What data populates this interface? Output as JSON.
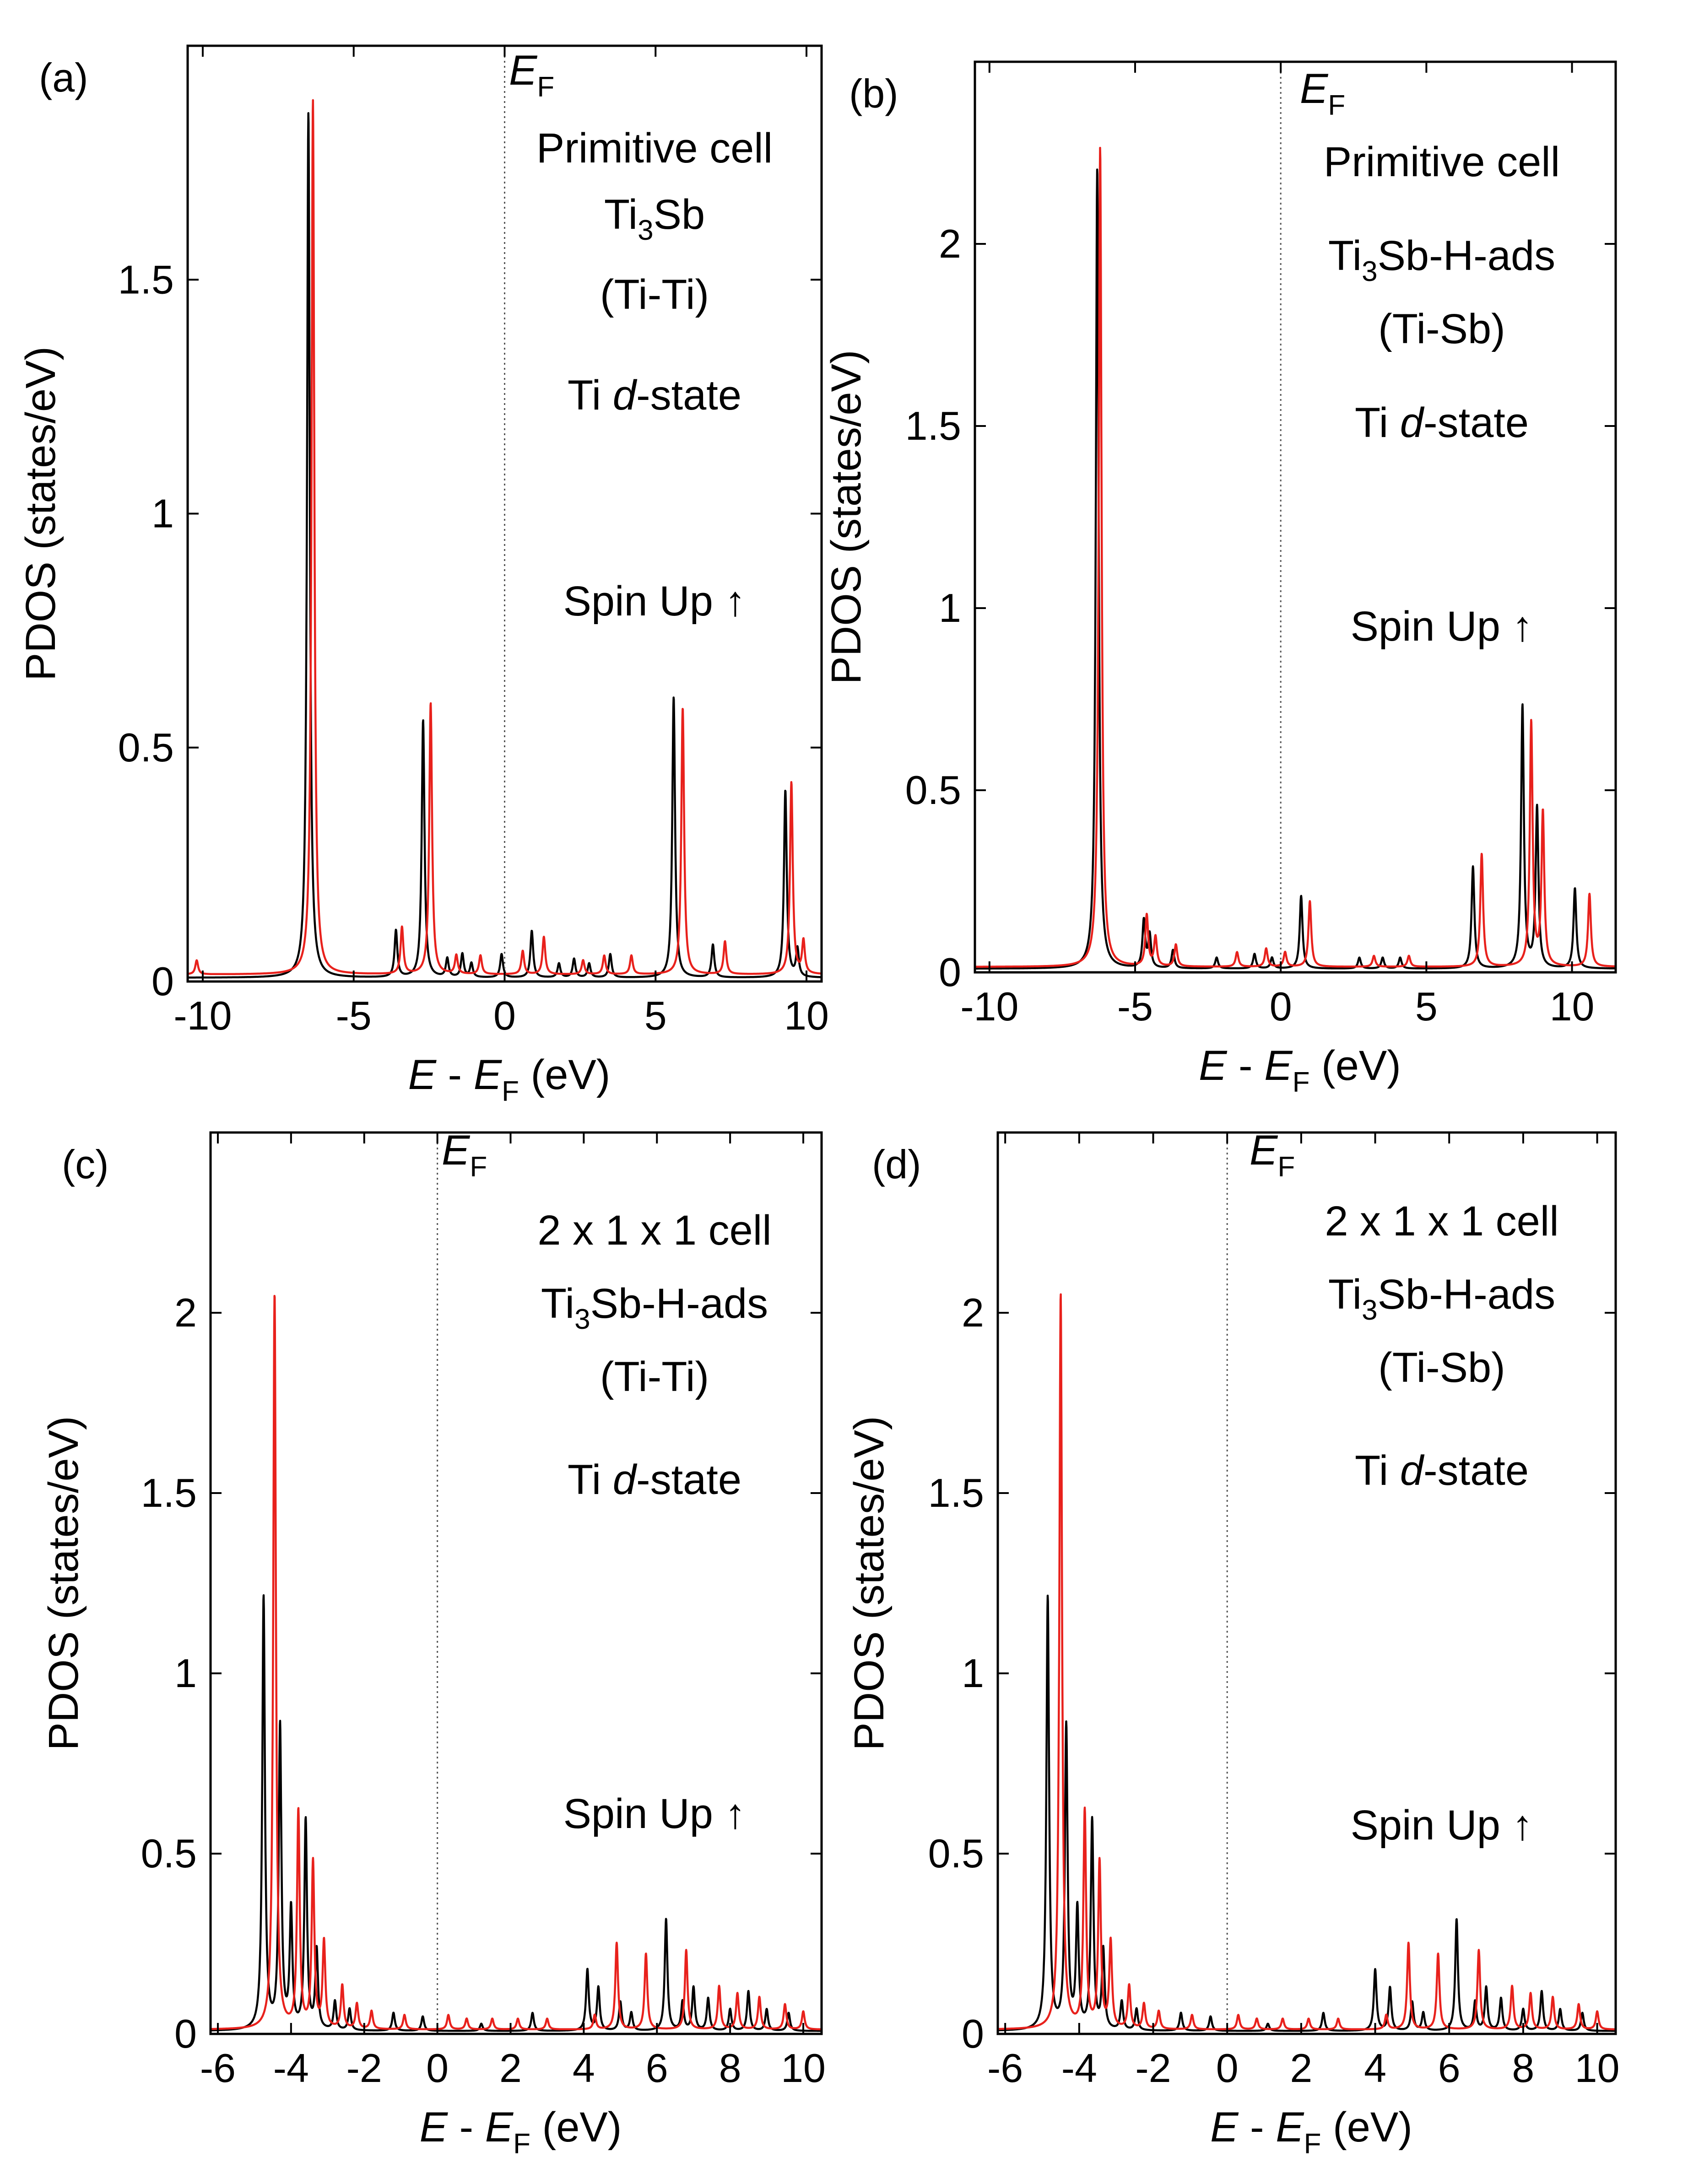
{
  "figure": {
    "xlabel_main": "E",
    "xlabel_dash": " - ",
    "xlabel_ef": "E",
    "xlabel_sub": "F",
    "xlabel_unit": " (eV)",
    "ylabel": "PDOS (states/eV)",
    "ef_label": "E",
    "ef_sub": "F",
    "colors": {
      "black_series": "#000000",
      "red_series": "#e8211c",
      "fermi_line": "#555555"
    }
  },
  "chart_data": [
    {
      "panel": "(a)",
      "type": "line",
      "xlim": [
        -10.5,
        10.5
      ],
      "ylim": [
        0,
        2.0
      ],
      "xticks": [
        -10,
        -5,
        0,
        5,
        10
      ],
      "xtick_labels": [
        "-10",
        "-5",
        "0",
        "5",
        "10"
      ],
      "yticks": [
        0,
        0.5,
        1,
        1.5
      ],
      "ytick_labels": [
        "0",
        "0.5",
        "1",
        "1.5"
      ],
      "fermi": 0,
      "annotations": {
        "cell": "Primitive cell",
        "compound_prefix": "Ti",
        "compound_sub": "3",
        "compound_rest": "Sb",
        "site": "(Ti-Ti)",
        "state_prefix": "Ti ",
        "state_italic": "d",
        "state_rest": "-state",
        "spin": "Spin Up ↑"
      },
      "series": [
        {
          "name": "black",
          "color": "#000000",
          "baseline": 0.008,
          "peaks": [
            [
              -6.5,
              1.85
            ],
            [
              -3.6,
              0.1
            ],
            [
              -2.7,
              0.55
            ],
            [
              -1.9,
              0.04
            ],
            [
              -1.4,
              0.05
            ],
            [
              -1.1,
              0.03
            ],
            [
              -0.1,
              0.05
            ],
            [
              0.9,
              0.1
            ],
            [
              1.8,
              0.03
            ],
            [
              2.3,
              0.04
            ],
            [
              2.8,
              0.03
            ],
            [
              3.5,
              0.05
            ],
            [
              5.6,
              0.6
            ],
            [
              6.9,
              0.07
            ],
            [
              9.3,
              0.4
            ],
            [
              9.7,
              0.06
            ]
          ]
        },
        {
          "name": "red",
          "color": "#e8211c",
          "baseline": 0.015,
          "peaks": [
            [
              -10.2,
              0.03
            ],
            [
              -6.35,
              1.87
            ],
            [
              -3.4,
              0.1
            ],
            [
              -2.45,
              0.58
            ],
            [
              -1.6,
              0.04
            ],
            [
              -0.8,
              0.04
            ],
            [
              0.6,
              0.05
            ],
            [
              1.3,
              0.08
            ],
            [
              2.6,
              0.03
            ],
            [
              3.3,
              0.04
            ],
            [
              4.2,
              0.04
            ],
            [
              5.9,
              0.57
            ],
            [
              7.3,
              0.07
            ],
            [
              9.5,
              0.41
            ],
            [
              9.9,
              0.07
            ]
          ]
        }
      ]
    },
    {
      "panel": "(b)",
      "type": "line",
      "xlim": [
        -10.5,
        11.5
      ],
      "ylim": [
        0,
        2.5
      ],
      "xticks": [
        -10,
        -5,
        0,
        5,
        10
      ],
      "xtick_labels": [
        "-10",
        "-5",
        "0",
        "5",
        "10"
      ],
      "yticks": [
        0,
        0.5,
        1,
        1.5,
        2
      ],
      "ytick_labels": [
        "0",
        "0.5",
        "1",
        "1.5",
        "2"
      ],
      "fermi": 0,
      "annotations": {
        "cell": "Primitive cell",
        "compound_prefix": "Ti",
        "compound_sub": "3",
        "compound_rest": "Sb-H-ads",
        "site": "(Ti-Sb)",
        "state_prefix": "Ti ",
        "state_italic": "d",
        "state_rest": "-state",
        "spin": "Spin Up ↑"
      },
      "series": [
        {
          "name": "black",
          "color": "#000000",
          "baseline": 0.01,
          "peaks": [
            [
              -6.3,
              2.2
            ],
            [
              -4.7,
              0.13
            ],
            [
              -4.5,
              0.09
            ],
            [
              -3.7,
              0.05
            ],
            [
              -2.2,
              0.03
            ],
            [
              -0.9,
              0.04
            ],
            [
              -0.3,
              0.03
            ],
            [
              0.7,
              0.2
            ],
            [
              2.7,
              0.03
            ],
            [
              3.5,
              0.03
            ],
            [
              4.1,
              0.03
            ],
            [
              6.6,
              0.28
            ],
            [
              8.3,
              0.72
            ],
            [
              8.8,
              0.44
            ],
            [
              10.1,
              0.22
            ]
          ]
        },
        {
          "name": "red",
          "color": "#e8211c",
          "baseline": 0.015,
          "peaks": [
            [
              -6.2,
              2.25
            ],
            [
              -4.6,
              0.14
            ],
            [
              -4.3,
              0.08
            ],
            [
              -3.6,
              0.06
            ],
            [
              -1.5,
              0.04
            ],
            [
              -0.5,
              0.05
            ],
            [
              0.15,
              0.04
            ],
            [
              1.0,
              0.18
            ],
            [
              3.2,
              0.03
            ],
            [
              4.4,
              0.03
            ],
            [
              6.9,
              0.31
            ],
            [
              8.6,
              0.67
            ],
            [
              9.0,
              0.42
            ],
            [
              10.6,
              0.2
            ]
          ]
        }
      ]
    },
    {
      "panel": "(c)",
      "type": "line",
      "xlim": [
        -6.2,
        10.5
      ],
      "ylim": [
        0,
        2.5
      ],
      "xticks": [
        -6,
        -4,
        -2,
        0,
        2,
        4,
        6,
        8,
        10
      ],
      "xtick_labels": [
        "-6",
        "-4",
        "-2",
        "0",
        "2",
        "4",
        "6",
        "8",
        "10"
      ],
      "yticks": [
        0,
        0.5,
        1,
        1.5,
        2
      ],
      "ytick_labels": [
        "0",
        "0.5",
        "1",
        "1.5",
        "2"
      ],
      "fermi": 0,
      "annotations": {
        "cell": "2 x 1 x 1  cell",
        "compound_prefix": "Ti",
        "compound_sub": "3",
        "compound_rest": "Sb-H-ads",
        "site": "(Ti-Ti)",
        "state_prefix": "Ti ",
        "state_italic": "d",
        "state_rest": "-state",
        "spin": "Spin Up ↑"
      },
      "series": [
        {
          "name": "black",
          "color": "#000000",
          "baseline": 0.008,
          "peaks": [
            [
              -4.75,
              1.2
            ],
            [
              -4.3,
              0.84
            ],
            [
              -4.0,
              0.33
            ],
            [
              -3.6,
              0.58
            ],
            [
              -3.3,
              0.22
            ],
            [
              -2.8,
              0.08
            ],
            [
              -2.4,
              0.06
            ],
            [
              -1.2,
              0.05
            ],
            [
              -0.4,
              0.04
            ],
            [
              1.2,
              0.02
            ],
            [
              2.6,
              0.05
            ],
            [
              4.1,
              0.17
            ],
            [
              4.4,
              0.12
            ],
            [
              5.0,
              0.08
            ],
            [
              5.3,
              0.05
            ],
            [
              6.25,
              0.31
            ],
            [
              6.7,
              0.08
            ],
            [
              7.0,
              0.12
            ],
            [
              7.4,
              0.09
            ],
            [
              8.0,
              0.06
            ],
            [
              8.5,
              0.11
            ],
            [
              9.0,
              0.06
            ],
            [
              9.6,
              0.05
            ]
          ]
        },
        {
          "name": "red",
          "color": "#e8211c",
          "baseline": 0.012,
          "peaks": [
            [
              -4.45,
              2.04
            ],
            [
              -3.8,
              0.6
            ],
            [
              -3.4,
              0.46
            ],
            [
              -3.1,
              0.24
            ],
            [
              -2.6,
              0.12
            ],
            [
              -2.2,
              0.07
            ],
            [
              -1.8,
              0.05
            ],
            [
              -0.9,
              0.04
            ],
            [
              0.3,
              0.04
            ],
            [
              0.8,
              0.03
            ],
            [
              1.5,
              0.03
            ],
            [
              2.2,
              0.03
            ],
            [
              3.0,
              0.03
            ],
            [
              4.3,
              0.04
            ],
            [
              4.9,
              0.24
            ],
            [
              5.7,
              0.21
            ],
            [
              6.8,
              0.22
            ],
            [
              7.7,
              0.12
            ],
            [
              8.2,
              0.1
            ],
            [
              8.8,
              0.09
            ],
            [
              9.5,
              0.07
            ],
            [
              10.0,
              0.05
            ]
          ]
        }
      ]
    },
    {
      "panel": "(d)",
      "type": "line",
      "xlim": [
        -6.2,
        10.5
      ],
      "ylim": [
        0,
        2.5
      ],
      "xticks": [
        -6,
        -4,
        -2,
        0,
        2,
        4,
        6,
        8,
        10
      ],
      "xtick_labels": [
        "-6",
        "-4",
        "-2",
        "0",
        "2",
        "4",
        "6",
        "8",
        "10"
      ],
      "yticks": [
        0,
        0.5,
        1,
        1.5,
        2
      ],
      "ytick_labels": [
        "0",
        "0.5",
        "1",
        "1.5",
        "2"
      ],
      "fermi": 0,
      "annotations": {
        "cell": "2 x 1 x 1  cell",
        "compound_prefix": "Ti",
        "compound_sub": "3",
        "compound_rest": "Sb-H-ads",
        "site": "(Ti-Sb)",
        "state_prefix": "Ti ",
        "state_italic": "d",
        "state_rest": "-state",
        "spin": "Spin Up ↑"
      },
      "series": [
        {
          "name": "black",
          "color": "#000000",
          "baseline": 0.008,
          "peaks": [
            [
              -4.85,
              1.2
            ],
            [
              -4.35,
              0.84
            ],
            [
              -4.05,
              0.33
            ],
            [
              -3.65,
              0.58
            ],
            [
              -3.35,
              0.22
            ],
            [
              -2.85,
              0.08
            ],
            [
              -2.45,
              0.06
            ],
            [
              -1.25,
              0.05
            ],
            [
              -0.45,
              0.04
            ],
            [
              1.1,
              0.02
            ],
            [
              2.6,
              0.05
            ],
            [
              4.0,
              0.17
            ],
            [
              4.4,
              0.12
            ],
            [
              5.0,
              0.08
            ],
            [
              5.3,
              0.05
            ],
            [
              6.2,
              0.31
            ],
            [
              6.7,
              0.08
            ],
            [
              7.0,
              0.12
            ],
            [
              7.4,
              0.09
            ],
            [
              8.0,
              0.06
            ],
            [
              8.5,
              0.11
            ],
            [
              9.0,
              0.06
            ],
            [
              9.6,
              0.05
            ]
          ]
        },
        {
          "name": "red",
          "color": "#e8211c",
          "baseline": 0.012,
          "peaks": [
            [
              -4.5,
              2.04
            ],
            [
              -3.85,
              0.6
            ],
            [
              -3.45,
              0.46
            ],
            [
              -3.15,
              0.24
            ],
            [
              -2.65,
              0.12
            ],
            [
              -2.25,
              0.07
            ],
            [
              -1.85,
              0.05
            ],
            [
              -0.95,
              0.04
            ],
            [
              0.3,
              0.04
            ],
            [
              0.8,
              0.03
            ],
            [
              1.5,
              0.03
            ],
            [
              2.2,
              0.03
            ],
            [
              3.0,
              0.03
            ],
            [
              4.3,
              0.04
            ],
            [
              4.9,
              0.24
            ],
            [
              5.7,
              0.21
            ],
            [
              6.8,
              0.22
            ],
            [
              7.7,
              0.12
            ],
            [
              8.2,
              0.1
            ],
            [
              8.8,
              0.09
            ],
            [
              9.5,
              0.07
            ],
            [
              10.0,
              0.05
            ]
          ]
        }
      ]
    }
  ]
}
